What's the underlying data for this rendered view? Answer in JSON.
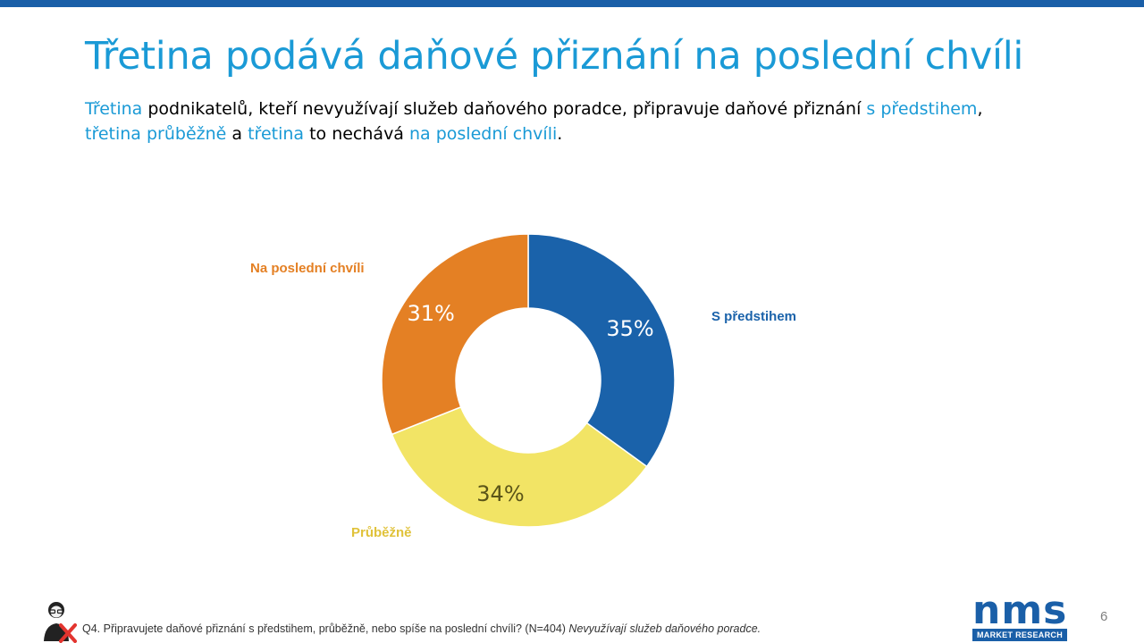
{
  "slide": {
    "title": "Třetina podává daňové přiznání na poslední chvíli",
    "subtitle": {
      "p1": "Třetina",
      "p2": " podnikatelů, kteří nevyužívají služeb daňového poradce, připravuje daňové přiznání ",
      "p3": "s předstihem",
      "p4": ",",
      "p5": "třetina průběžně",
      "p6": " a ",
      "p7": "třetina",
      "p8": " to nechává ",
      "p9": "na poslední chvíli",
      "p10": "."
    },
    "footnote": {
      "question": "Q4. Připravujete daňové přiznání s předstihem, průběžně,  nebo spíše na poslední chvíli? (N=404) ",
      "segment": "Nevyužívají služeb daňového poradce."
    },
    "logo": {
      "letters": "nms",
      "tagline": "MARKET RESEARCH"
    },
    "page_number": "6"
  },
  "colors": {
    "title": "#1a9ad6",
    "brand": "#1a5fa8",
    "s_predstihem": "#1a62aa",
    "prubezne": "#f2e465",
    "na_posledni": "#e48024"
  },
  "chart_data": {
    "type": "pie",
    "variant": "donut",
    "unit": "%",
    "slices": [
      {
        "label": "S předstihem",
        "value": 35,
        "value_label": "35%",
        "color": "#1a62aa"
      },
      {
        "label": "Průběžně",
        "value": 34,
        "value_label": "34%",
        "color": "#f2e465"
      },
      {
        "label": "Na poslední chvíli",
        "value": 31,
        "value_label": "31%",
        "color": "#e48024"
      }
    ]
  }
}
